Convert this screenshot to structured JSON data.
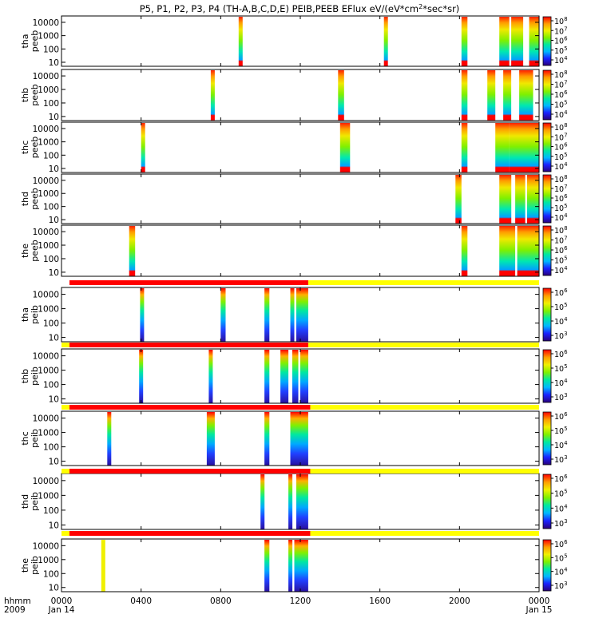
{
  "chart_data": {
    "type": "heatmap",
    "title": "P5, P1, P2, P3, P4 (TH-A,B,C,D,E) PEIB,PEEB EFlux eV/(eV*cm2*sec*sr)",
    "title_parts": {
      "main": "P5, P1, P2, P3, P4 (TH-A,B,C,D,E) PEIB,PEEB EFlux eV/(eV*cm",
      "superscript": "2",
      "tail": "*sec*sr)"
    },
    "x_axis": {
      "label_line1": "hhmm",
      "label_line2": "2009",
      "range_hhmm": [
        0,
        2400
      ],
      "ticks": [
        {
          "hours": 0,
          "label": "0000",
          "sublabel": "Jan 14"
        },
        {
          "hours": 4,
          "label": "0400",
          "sublabel": ""
        },
        {
          "hours": 8,
          "label": "0800",
          "sublabel": ""
        },
        {
          "hours": 12,
          "label": "1200",
          "sublabel": ""
        },
        {
          "hours": 16,
          "label": "1600",
          "sublabel": ""
        },
        {
          "hours": 20,
          "label": "2000",
          "sublabel": ""
        },
        {
          "hours": 24,
          "label": "0000",
          "sublabel": "Jan 15"
        }
      ]
    },
    "y_axis": {
      "scale": "log",
      "range_eV": [
        5,
        30000
      ],
      "ticks": [
        {
          "value": 10,
          "label": "10"
        },
        {
          "value": 100,
          "label": "100"
        },
        {
          "value": 1000,
          "label": "1000"
        },
        {
          "value": 10000,
          "label": "10000"
        }
      ]
    },
    "colorbar": {
      "scale": "log",
      "colors": [
        "#2a007a",
        "#1a22ff",
        "#00b8ff",
        "#00e8a0",
        "#7ff000",
        "#f0f000",
        "#ff9c00",
        "#ff0000"
      ],
      "peeb_labels": [
        {
          "mantissa": "10",
          "exp": "8"
        },
        {
          "mantissa": "10",
          "exp": "7"
        },
        {
          "mantissa": "10",
          "exp": "6"
        },
        {
          "mantissa": "10",
          "exp": "5"
        },
        {
          "mantissa": "10",
          "exp": "4"
        }
      ],
      "peib_labels": [
        {
          "mantissa": "10",
          "exp": "6"
        },
        {
          "mantissa": "10",
          "exp": "5"
        },
        {
          "mantissa": "10",
          "exp": "4"
        },
        {
          "mantissa": "10",
          "exp": "3"
        }
      ]
    },
    "panels": [
      {
        "probe": "tha",
        "instrument": "peeb",
        "intervals_hours": [
          [
            8.9,
            9.1
          ],
          [
            16.2,
            16.4
          ],
          [
            20.1,
            20.4
          ],
          [
            22.0,
            22.5
          ],
          [
            22.6,
            23.2
          ],
          [
            23.5,
            24.0
          ]
        ]
      },
      {
        "probe": "thb",
        "instrument": "peeb",
        "intervals_hours": [
          [
            7.5,
            7.7
          ],
          [
            13.9,
            14.2
          ],
          [
            20.1,
            20.4
          ],
          [
            21.4,
            21.8
          ],
          [
            22.2,
            22.6
          ],
          [
            23.0,
            23.7
          ]
        ]
      },
      {
        "probe": "thc",
        "instrument": "peeb",
        "intervals_hours": [
          [
            4.0,
            4.2
          ],
          [
            14.0,
            14.5
          ],
          [
            20.1,
            20.4
          ],
          [
            21.8,
            22.5
          ],
          [
            22.5,
            24.0
          ]
        ]
      },
      {
        "probe": "thd",
        "instrument": "peeb",
        "intervals_hours": [
          [
            19.8,
            20.1
          ],
          [
            22.0,
            22.6
          ],
          [
            22.8,
            23.3
          ],
          [
            23.4,
            24.0
          ]
        ]
      },
      {
        "probe": "the",
        "instrument": "peeb",
        "intervals_hours": [
          [
            3.4,
            3.7
          ],
          [
            20.1,
            20.4
          ],
          [
            22.0,
            22.8
          ],
          [
            22.9,
            24.0
          ]
        ]
      },
      {
        "probe": "tha",
        "instrument": "peib",
        "bar": {
          "red": [
            0.4,
            12.4
          ],
          "yellow": [
            12.4,
            24.0
          ]
        },
        "intervals_hours": [
          [
            3.95,
            4.15
          ],
          [
            8.0,
            8.25
          ],
          [
            10.2,
            10.45
          ],
          [
            11.5,
            11.7
          ],
          [
            11.8,
            12.4
          ]
        ]
      },
      {
        "probe": "thb",
        "instrument": "peib",
        "bar": {
          "yellow_start": [
            0,
            0.4
          ],
          "red": [
            0.4,
            12.4
          ],
          "yellow": [
            12.4,
            24.0
          ]
        },
        "intervals_hours": [
          [
            3.9,
            4.1
          ],
          [
            7.4,
            7.6
          ],
          [
            10.2,
            10.45
          ],
          [
            11.0,
            11.4
          ],
          [
            11.6,
            11.9
          ],
          [
            12.0,
            12.4
          ]
        ]
      },
      {
        "probe": "thc",
        "instrument": "peib",
        "bar": {
          "yellow_start": [
            0,
            0.4
          ],
          "red": [
            0.4,
            12.5
          ],
          "yellow": [
            12.5,
            24.0
          ]
        },
        "intervals_hours": [
          [
            2.3,
            2.5
          ],
          [
            7.3,
            7.7
          ],
          [
            10.2,
            10.45
          ],
          [
            11.5,
            12.4
          ]
        ]
      },
      {
        "probe": "thd",
        "instrument": "peib",
        "bar": {
          "yellow_start": [
            0,
            0.4
          ],
          "red": [
            0.4,
            12.5
          ],
          "yellow": [
            12.5,
            24.0
          ]
        },
        "intervals_hours": [
          [
            10.0,
            10.2
          ],
          [
            11.4,
            11.6
          ],
          [
            11.8,
            12.4
          ]
        ]
      },
      {
        "probe": "the",
        "instrument": "peib",
        "bar": {
          "yellow_start": [
            0,
            0.4
          ],
          "red": [
            0.4,
            12.5
          ],
          "yellow": [
            12.5,
            24.0
          ]
        },
        "yellow_blocks_hours": [
          [
            2.0,
            2.2
          ]
        ],
        "intervals_hours": [
          [
            10.2,
            10.45
          ],
          [
            11.4,
            11.6
          ],
          [
            11.7,
            12.4
          ]
        ]
      }
    ]
  }
}
